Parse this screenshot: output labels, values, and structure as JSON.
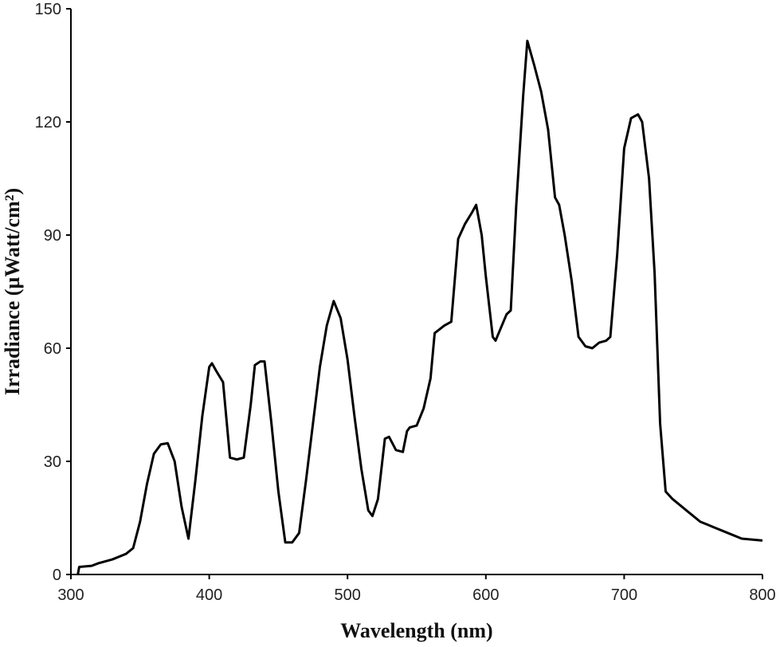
{
  "chart_data": {
    "type": "line",
    "xlabel": "Wavelength (nm)",
    "ylabel": "Irradiance  (µWatt/cm²)",
    "xlim": [
      300,
      800
    ],
    "xticks": [
      300,
      400,
      500,
      600,
      700,
      800
    ],
    "ylim": [
      0,
      150
    ],
    "yticks": [
      0,
      30,
      60,
      90,
      120,
      150
    ],
    "series": [
      {
        "color": "#000000",
        "x": [
          305,
          306,
          315,
          320,
          330,
          340,
          345,
          350,
          355,
          360,
          365,
          370,
          375,
          380,
          385,
          390,
          395,
          400,
          402,
          405,
          410,
          415,
          420,
          425,
          430,
          433,
          437,
          440,
          445,
          450,
          455,
          460,
          465,
          470,
          475,
          480,
          485,
          490,
          495,
          500,
          505,
          510,
          515,
          518,
          522,
          527,
          530,
          535,
          540,
          543,
          545,
          550,
          555,
          560,
          563,
          570,
          575,
          580,
          585,
          590,
          593,
          597,
          600,
          605,
          607,
          615,
          618,
          622,
          627,
          630,
          635,
          640,
          645,
          650,
          653,
          657,
          662,
          667,
          672,
          677,
          682,
          687,
          690,
          695,
          700,
          705,
          710,
          713,
          718,
          722,
          726,
          730,
          735,
          745,
          755,
          765,
          775,
          785,
          800
        ],
        "values": [
          0,
          2,
          2.3,
          3,
          4,
          5.5,
          7,
          14,
          24,
          32,
          34.5,
          34.8,
          30,
          18,
          9.5,
          25,
          42,
          55,
          56,
          54,
          51,
          31,
          30.5,
          31,
          45,
          55.5,
          56.5,
          56.5,
          40,
          22,
          8.5,
          8.5,
          11,
          25,
          40,
          55,
          66,
          72.5,
          68,
          57,
          42,
          28,
          17,
          15.5,
          20,
          36,
          36.5,
          33,
          32.5,
          38,
          39,
          39.5,
          44,
          52,
          64,
          66,
          67,
          89,
          93,
          96,
          98,
          90,
          79,
          63,
          62,
          69,
          70,
          98,
          127,
          141.5,
          135,
          128,
          118,
          100,
          98,
          90,
          78,
          63,
          60.5,
          60,
          61.5,
          62,
          63,
          85,
          113,
          121,
          122,
          120,
          105,
          80,
          40,
          22,
          20,
          17,
          14,
          12.5,
          11,
          9.5,
          9
        ]
      }
    ]
  }
}
